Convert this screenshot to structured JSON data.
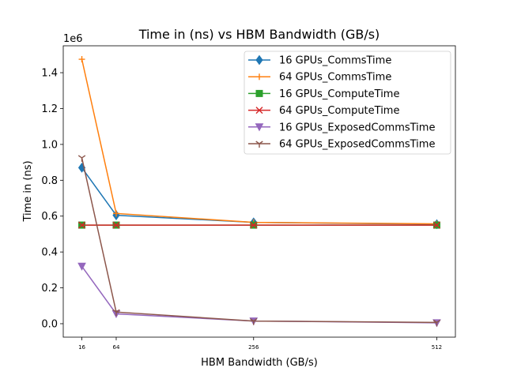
{
  "chart_data": {
    "type": "line",
    "title": "Time in (ns) vs HBM Bandwidth (GB/s)",
    "xlabel": "HBM Bandwidth (GB/s)",
    "ylabel": "Time in (ns)",
    "y_offset_label": "1e6",
    "x": [
      16,
      64,
      256,
      512
    ],
    "x_tick_labels": [
      "16",
      "64",
      "256",
      "512"
    ],
    "xlim": [
      -10,
      538
    ],
    "ylim": [
      -0.075,
      1.55
    ],
    "y_ticks": [
      0.0,
      0.2,
      0.4,
      0.6,
      0.8,
      1.0,
      1.2,
      1.4
    ],
    "y_tick_labels": [
      "0.0",
      "0.2",
      "0.4",
      "0.6",
      "0.8",
      "1.0",
      "1.2",
      "1.4"
    ],
    "grid": false,
    "legend_position": "top-right",
    "series": [
      {
        "name": "16 GPUs_CommsTime",
        "color": "#1f77b4",
        "marker": "diamond",
        "values": [
          0.87,
          0.605,
          0.565,
          0.555
        ]
      },
      {
        "name": "64 GPUs_CommsTime",
        "color": "#ff7f0e",
        "marker": "plus",
        "values": [
          1.475,
          0.615,
          0.565,
          0.557
        ]
      },
      {
        "name": "16 GPUs_ComputeTime",
        "color": "#2ca02c",
        "marker": "square",
        "values": [
          0.55,
          0.55,
          0.55,
          0.55
        ]
      },
      {
        "name": "64 GPUs_ComputeTime",
        "color": "#d62728",
        "marker": "x",
        "values": [
          0.55,
          0.55,
          0.55,
          0.55
        ]
      },
      {
        "name": "16 GPUs_ExposedCommsTime",
        "color": "#9467bd",
        "marker": "triangle-down",
        "values": [
          0.32,
          0.055,
          0.015,
          0.005
        ]
      },
      {
        "name": "64 GPUs_ExposedCommsTime",
        "color": "#8c564b",
        "marker": "tri-down",
        "values": [
          0.925,
          0.065,
          0.015,
          0.007
        ]
      }
    ]
  }
}
